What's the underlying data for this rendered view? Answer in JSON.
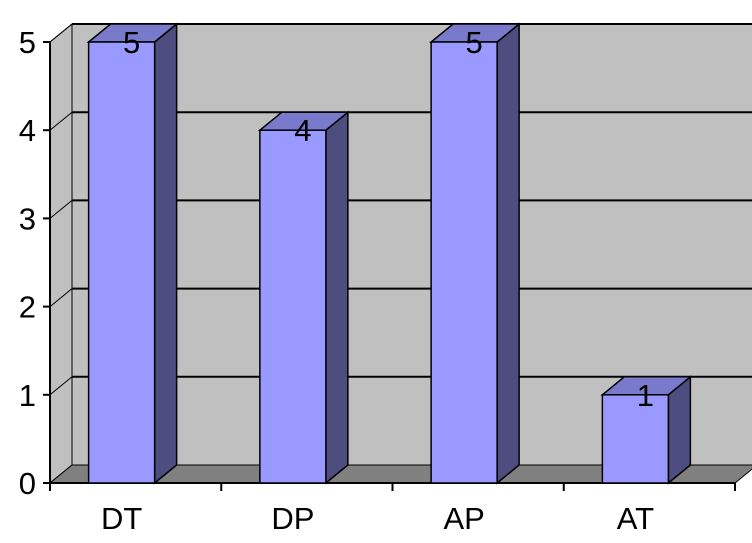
{
  "chart_data": {
    "type": "bar",
    "style": "3d-column",
    "categories": [
      "DT",
      "DP",
      "AP",
      "AT"
    ],
    "values": [
      5,
      4,
      5,
      1
    ],
    "data_labels": [
      "5",
      "4",
      "5",
      "1"
    ],
    "title": "",
    "xlabel": "",
    "ylabel": "",
    "ylim": [
      0,
      5
    ],
    "y_ticks": [
      "0",
      "1",
      "2",
      "3",
      "4",
      "5"
    ],
    "grid": true,
    "legend": "none",
    "colors": {
      "bar_front": "#9999ff",
      "bar_side": "#4d4d80",
      "bar_top": "#7a7acc",
      "wall": "#c0c0c0",
      "floor": "#808080",
      "outline": "#000000"
    }
  }
}
